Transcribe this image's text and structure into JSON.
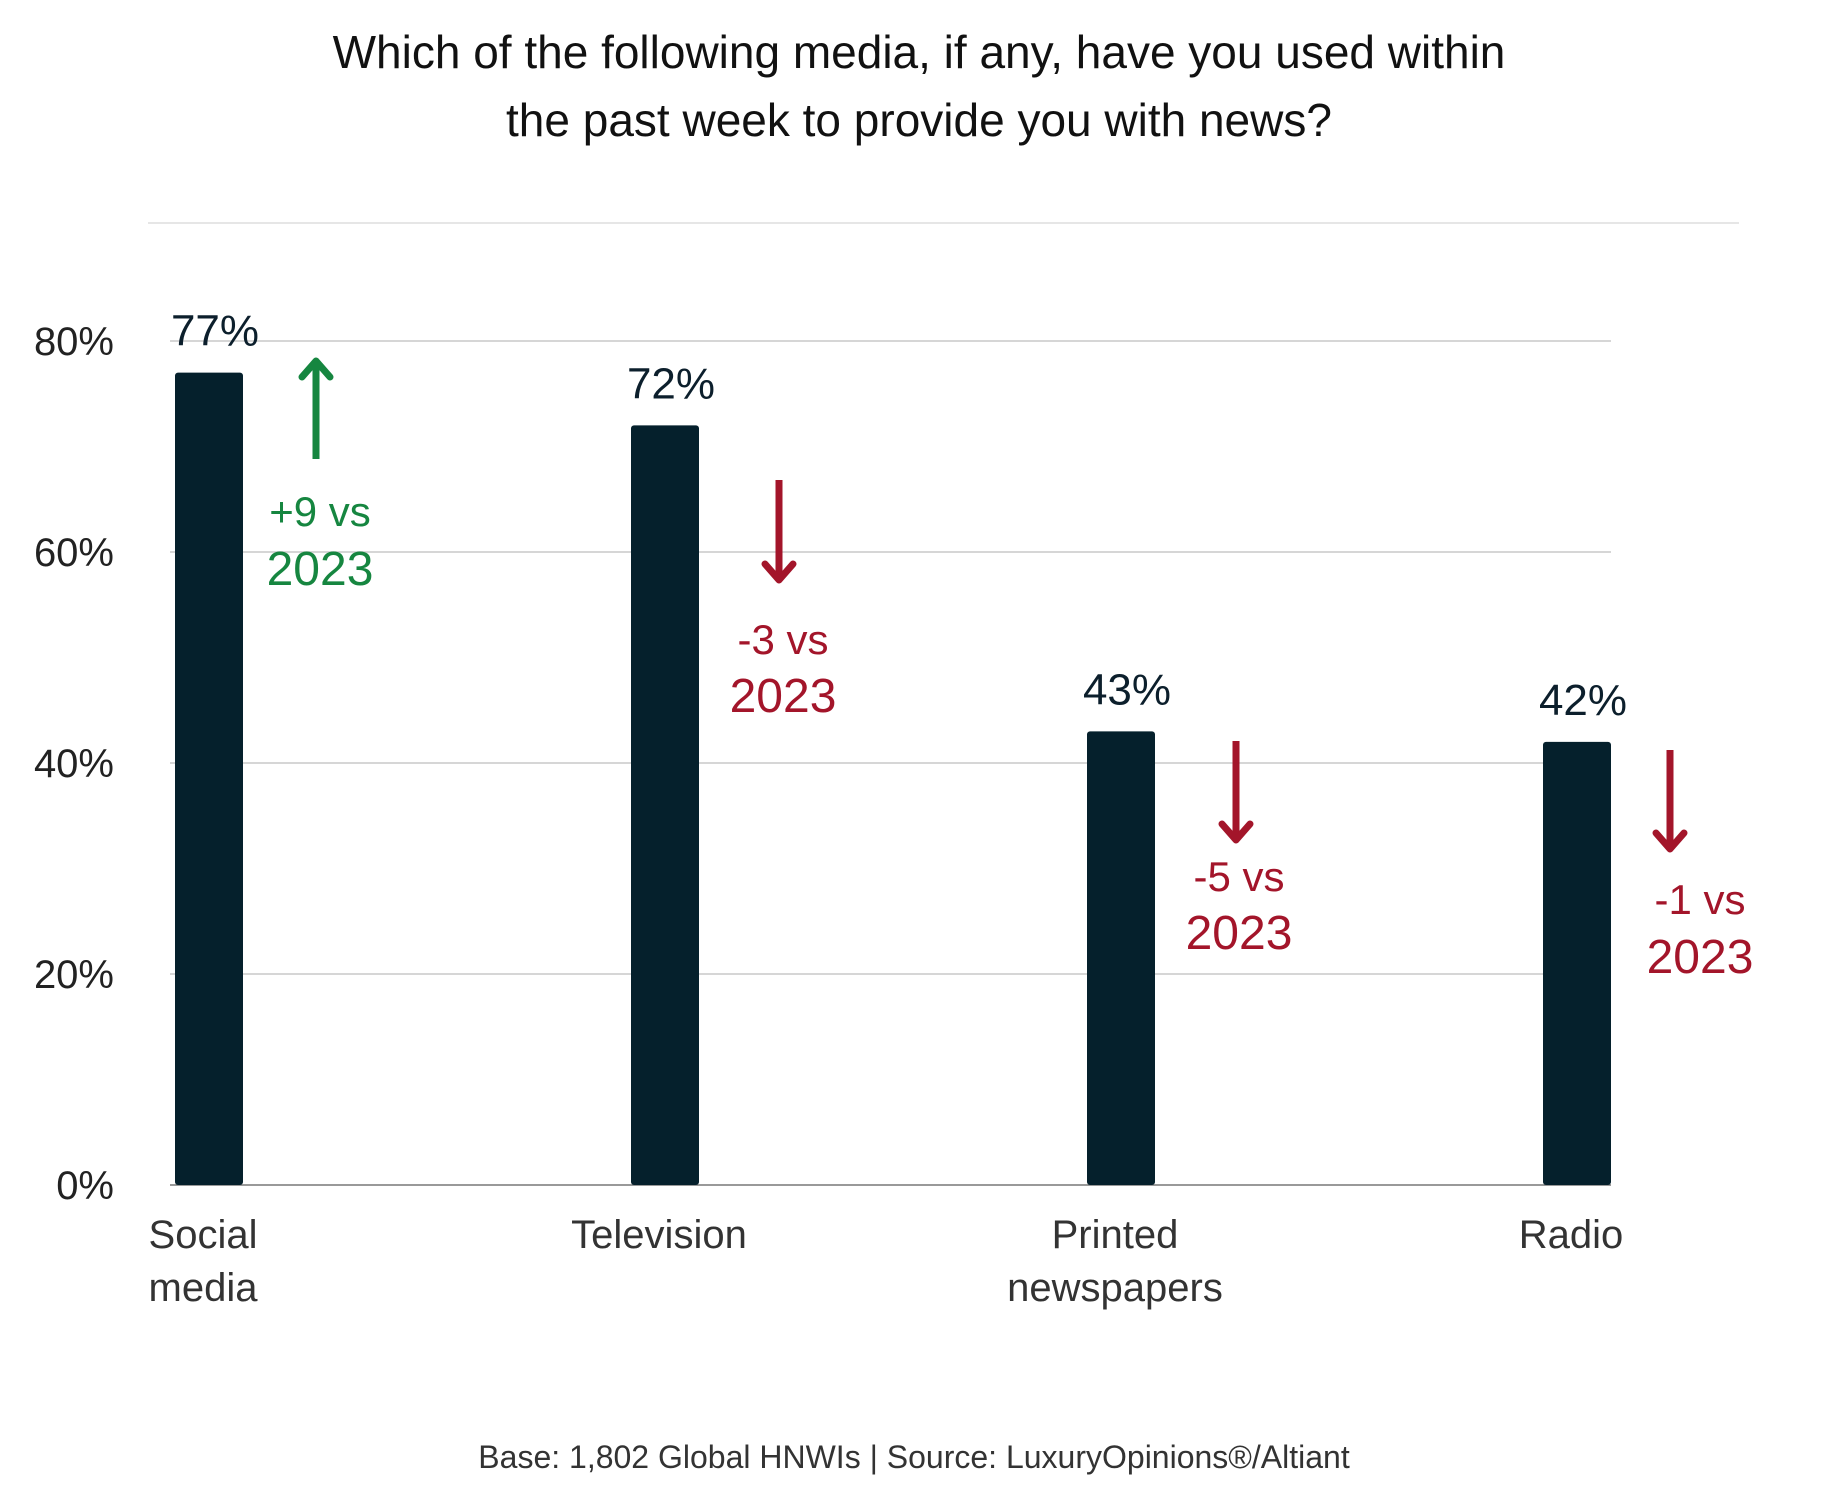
{
  "chart_data": {
    "type": "bar",
    "title_lines": [
      "Which of the following media, if any, have you used within",
      "the past week to provide you with news?"
    ],
    "categories": [
      [
        "Social",
        "media"
      ],
      [
        "Television"
      ],
      [
        "Printed",
        "newspapers"
      ],
      [
        "Radio"
      ]
    ],
    "values": [
      77,
      72,
      43,
      42
    ],
    "value_labels": [
      "77%",
      "72%",
      "43%",
      "42%"
    ],
    "changes_vs_2023": [
      9,
      -3,
      -5,
      -1
    ],
    "change_labels": [
      [
        "+9 vs",
        "2023"
      ],
      [
        "-3 vs",
        "2023"
      ],
      [
        "-5 vs",
        "2023"
      ],
      [
        "-1 vs",
        "2023"
      ]
    ],
    "yticks": [
      0,
      20,
      40,
      60,
      80
    ],
    "ytick_labels": [
      "0%",
      "20%",
      "40%",
      "60%",
      "80%"
    ],
    "ylim": [
      0,
      80
    ],
    "xlabel": "",
    "ylabel": "",
    "grid": true,
    "footnote": "Base: 1,802 Global HNWIs | Source: LuxuryOpinions®/Altiant",
    "colors": {
      "bar": "#05202c",
      "increase": "#168640",
      "decrease": "#a3152a",
      "text": "#0c1f2c",
      "grid": "#d6d6d6"
    }
  }
}
